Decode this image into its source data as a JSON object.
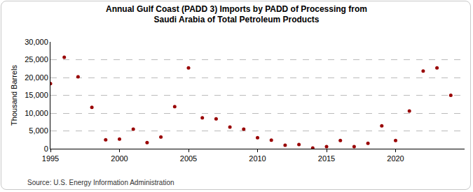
{
  "chart_data": {
    "type": "scatter",
    "title": "Annual Gulf Coast (PADD 3) Imports by PADD of Processing from Saudi Arabia of Total Petroleum Products",
    "y_label": "Thousand Barrels",
    "annotations": [
      "Source: U.S. Energy Information Administration"
    ],
    "x": [
      1995,
      1996,
      1997,
      1998,
      1999,
      2000,
      2001,
      2002,
      2003,
      2004,
      2005,
      2006,
      2007,
      2008,
      2009,
      2010,
      2011,
      2012,
      2013,
      2014,
      2015,
      2016,
      2017,
      2018,
      2019,
      2020,
      2021,
      2022,
      2023,
      2024
    ],
    "values": [
      18300,
      25700,
      20200,
      11600,
      2500,
      2700,
      5500,
      1700,
      3300,
      11800,
      22700,
      8700,
      8400,
      6100,
      5500,
      3100,
      2400,
      1000,
      1200,
      200,
      600,
      2300,
      600,
      1500,
      6400,
      2300,
      10600,
      21800,
      22700,
      15000
    ],
    "color": "#990000",
    "marker": "circle",
    "xlim": [
      1995,
      2025
    ],
    "xticks": [
      1995,
      2000,
      2005,
      2010,
      2015,
      2020
    ],
    "ylim": [
      0,
      30000
    ],
    "yticks": [
      0,
      {
        "value": 5000,
        "label": "5,000"
      },
      {
        "value": 10000,
        "label": "10,000"
      },
      {
        "value": 15000,
        "label": "15,000"
      },
      {
        "value": 20000,
        "label": "20,000"
      },
      {
        "value": 25000,
        "label": "25,000"
      },
      {
        "value": 30000,
        "label": "30,000"
      }
    ],
    "grid": true
  }
}
